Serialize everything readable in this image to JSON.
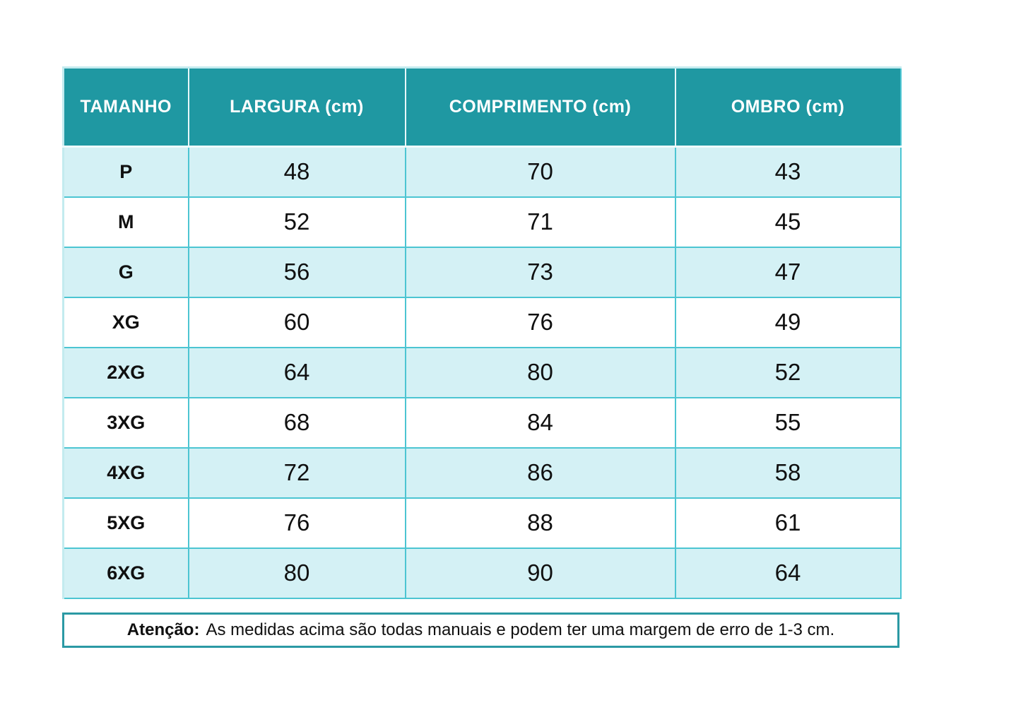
{
  "table": {
    "headers": [
      "TAMANHO",
      "LARGURA (cm)",
      "COMPRIMENTO (cm)",
      "OMBRO (cm)"
    ],
    "rows": [
      [
        "P",
        "48",
        "70",
        "43"
      ],
      [
        "M",
        "52",
        "71",
        "45"
      ],
      [
        "G",
        "56",
        "73",
        "47"
      ],
      [
        "XG",
        "60",
        "76",
        "49"
      ],
      [
        "2XG",
        "64",
        "80",
        "52"
      ],
      [
        "3XG",
        "68",
        "84",
        "55"
      ],
      [
        "4XG",
        "72",
        "86",
        "58"
      ],
      [
        "5XG",
        "76",
        "88",
        "61"
      ],
      [
        "6XG",
        "80",
        "90",
        "64"
      ]
    ]
  },
  "note": {
    "label": "Atenção:",
    "text": "As medidas acima são todas manuais e podem ter uma margem de erro de 1-3 cm."
  },
  "colors": {
    "header_bg": "#1f98a2",
    "header_text": "#ffffff",
    "row_alt_bg": "#d4f1f5",
    "row_bg": "#ffffff",
    "cell_border": "#4cc5d2",
    "note_border": "#2b99a4",
    "text": "#101010"
  }
}
